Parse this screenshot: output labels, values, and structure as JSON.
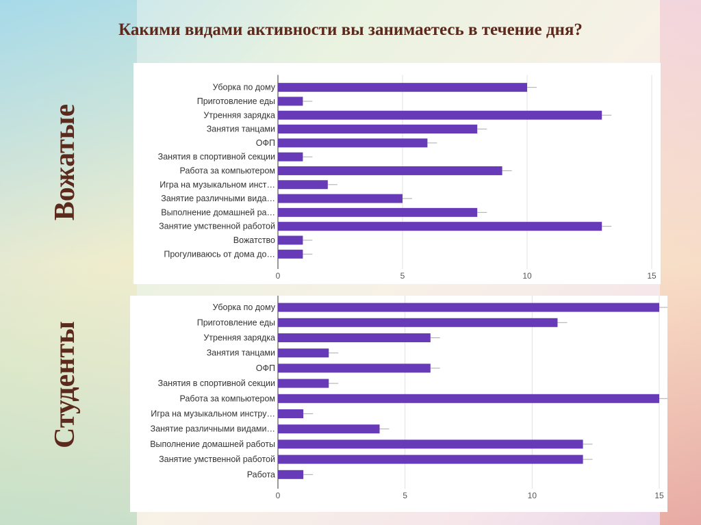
{
  "title": "Какими видами активности вы занимаетесь в течение дня?",
  "colors": {
    "bar": "#673ab7",
    "title": "#5c2a1c"
  },
  "chart_data": [
    {
      "type": "bar",
      "group_label": "Вожатые",
      "orientation": "horizontal",
      "categories": [
        "Уборка по дому",
        "Приготовление еды",
        "Утренняя зарядка",
        "Занятия танцами",
        "ОФП",
        "Занятия в спортивной секции",
        "Работа за компьютером",
        "Игра на музыкальном инст…",
        "Занятие различными вида…",
        "Выполнение домашней ра…",
        "Занятие умственной работой",
        "Вожатство",
        "Прогуливаюсь от дома до…"
      ],
      "values": [
        10,
        1,
        13,
        8,
        6,
        1,
        9,
        2,
        5,
        8,
        13,
        1,
        1
      ],
      "xlim": [
        0,
        15
      ],
      "xticks": [
        "0",
        "5",
        "10",
        "15"
      ],
      "grid": true
    },
    {
      "type": "bar",
      "group_label": "Студенты",
      "orientation": "horizontal",
      "categories": [
        "Уборка по дому",
        "Приготовление еды",
        "Утренняя зарядка",
        "Занятия танцами",
        "ОФП",
        "Занятия в спортивной секции",
        "Работа за компьютером",
        "Игра на музыкальном инстру…",
        "Занятие различными видами…",
        "Выполнение домашней работы",
        "Занятие умственной работой",
        "Работа"
      ],
      "values": [
        15,
        11,
        6,
        2,
        6,
        2,
        15,
        1,
        4,
        12,
        12,
        1
      ],
      "xlim": [
        0,
        15
      ],
      "xticks": [
        "0",
        "5",
        "10",
        "15"
      ],
      "grid": true
    }
  ]
}
